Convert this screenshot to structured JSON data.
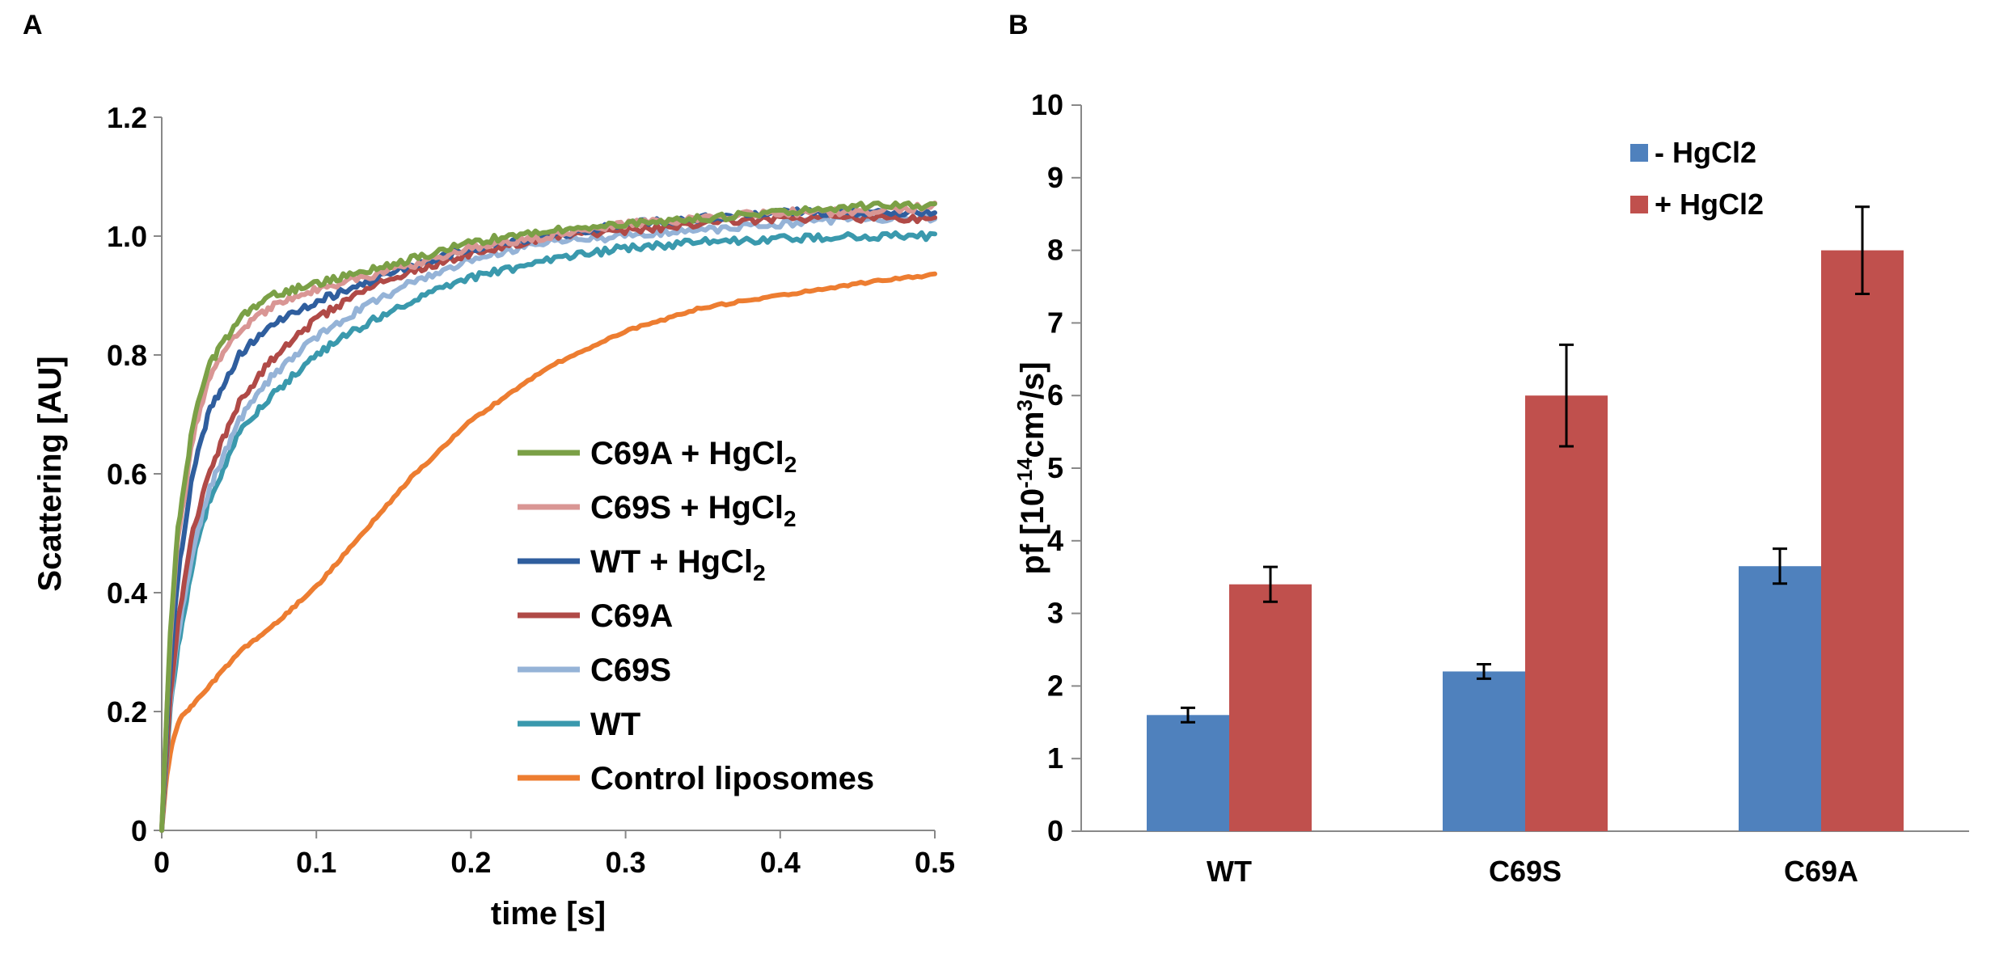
{
  "chart_data": [
    {
      "panel": "A",
      "type": "line",
      "xlabel": "time [s]",
      "ylabel": "Scattering [AU]",
      "xlim": [
        0,
        0.5
      ],
      "ylim": [
        0,
        1.2
      ],
      "x_ticks": [
        "0",
        "0.1",
        "0.2",
        "0.3",
        "0.4",
        "0.5"
      ],
      "y_ticks": [
        "0",
        "0.2",
        "0.4",
        "0.6",
        "0.8",
        "1.0",
        "1.2"
      ],
      "legend_position": "lower-right",
      "series": [
        {
          "name": "Control liposomes",
          "legend_label": {
            "base": "Control liposomes",
            "sub": ""
          },
          "color": "#ed7d31",
          "x": [
            0,
            0.003,
            0.007,
            0.012,
            0.02,
            0.03,
            0.05,
            0.07,
            0.1,
            0.13,
            0.16,
            0.2,
            0.25,
            0.3,
            0.35,
            0.4,
            0.45,
            0.5
          ],
          "y": [
            0,
            0.09,
            0.15,
            0.19,
            0.21,
            0.24,
            0.3,
            0.34,
            0.41,
            0.5,
            0.59,
            0.69,
            0.78,
            0.84,
            0.88,
            0.9,
            0.92,
            0.935
          ]
        },
        {
          "name": "WT",
          "legend_label": {
            "base": "WT",
            "sub": ""
          },
          "color": "#3a99ad",
          "x": [
            0,
            0.005,
            0.01,
            0.02,
            0.03,
            0.05,
            0.07,
            0.1,
            0.13,
            0.16,
            0.2,
            0.25,
            0.3,
            0.35,
            0.4,
            0.45,
            0.5
          ],
          "y": [
            0,
            0.19,
            0.3,
            0.45,
            0.55,
            0.67,
            0.73,
            0.8,
            0.85,
            0.89,
            0.93,
            0.96,
            0.98,
            0.99,
            0.995,
            1.0,
            1.0
          ]
        },
        {
          "name": "C69S",
          "legend_label": {
            "base": "C69S",
            "sub": ""
          },
          "color": "#95b3d7",
          "x": [
            0,
            0.005,
            0.01,
            0.02,
            0.03,
            0.05,
            0.07,
            0.1,
            0.13,
            0.16,
            0.2,
            0.25,
            0.3,
            0.35,
            0.4,
            0.45,
            0.5
          ],
          "y": [
            0,
            0.2,
            0.32,
            0.47,
            0.57,
            0.69,
            0.76,
            0.83,
            0.88,
            0.92,
            0.96,
            0.99,
            1.0,
            1.01,
            1.02,
            1.03,
            1.03
          ]
        },
        {
          "name": "C69A",
          "legend_label": {
            "base": "C69A",
            "sub": ""
          },
          "color": "#b04a47",
          "x": [
            0,
            0.005,
            0.01,
            0.02,
            0.03,
            0.05,
            0.07,
            0.1,
            0.13,
            0.16,
            0.2,
            0.25,
            0.3,
            0.35,
            0.4,
            0.45,
            0.5
          ],
          "y": [
            0,
            0.21,
            0.34,
            0.5,
            0.6,
            0.72,
            0.79,
            0.86,
            0.91,
            0.94,
            0.97,
            1.0,
            1.01,
            1.02,
            1.03,
            1.03,
            1.03
          ]
        },
        {
          "name": "WT + HgCl2",
          "legend_label": {
            "base": "WT + HgCl",
            "sub": "2"
          },
          "color": "#2f5e9e",
          "x": [
            0,
            0.005,
            0.01,
            0.02,
            0.03,
            0.05,
            0.07,
            0.1,
            0.13,
            0.16,
            0.2,
            0.25,
            0.3,
            0.35,
            0.4,
            0.45,
            0.5
          ],
          "y": [
            0,
            0.26,
            0.42,
            0.6,
            0.7,
            0.8,
            0.85,
            0.89,
            0.92,
            0.95,
            0.98,
            1.0,
            1.02,
            1.03,
            1.04,
            1.04,
            1.04
          ]
        },
        {
          "name": "C69S + HgCl2",
          "legend_label": {
            "base": "C69S + HgCl",
            "sub": "2"
          },
          "color": "#d99694",
          "x": [
            0,
            0.005,
            0.01,
            0.02,
            0.03,
            0.05,
            0.07,
            0.1,
            0.13,
            0.16,
            0.2,
            0.25,
            0.3,
            0.35,
            0.4,
            0.45,
            0.5
          ],
          "y": [
            0,
            0.3,
            0.48,
            0.66,
            0.76,
            0.84,
            0.88,
            0.91,
            0.93,
            0.95,
            0.98,
            1.0,
            1.02,
            1.03,
            1.04,
            1.04,
            1.05
          ]
        },
        {
          "name": "C69A + HgCl2",
          "legend_label": {
            "base": "C69A + HgCl",
            "sub": "2"
          },
          "color": "#7ba046",
          "x": [
            0,
            0.005,
            0.01,
            0.02,
            0.03,
            0.05,
            0.07,
            0.1,
            0.13,
            0.16,
            0.2,
            0.25,
            0.3,
            0.35,
            0.4,
            0.45,
            0.5
          ],
          "y": [
            0,
            0.31,
            0.5,
            0.68,
            0.78,
            0.86,
            0.9,
            0.92,
            0.94,
            0.96,
            0.99,
            1.01,
            1.02,
            1.03,
            1.04,
            1.05,
            1.05
          ]
        }
      ]
    },
    {
      "panel": "B",
      "type": "bar",
      "ylabel": {
        "base": "pf [10",
        "sup1": "-14",
        "mid": "cm",
        "sup2": "3",
        "tail": "/s]"
      },
      "ylim": [
        0,
        10
      ],
      "y_ticks": [
        "0",
        "1",
        "2",
        "3",
        "4",
        "5",
        "6",
        "7",
        "8",
        "9",
        "10"
      ],
      "categories": [
        "WT",
        "C69S",
        "C69A"
      ],
      "legend_position": "top",
      "series": [
        {
          "name": "- HgCl2",
          "color": "#4f81bd",
          "values": [
            1.6,
            2.2,
            3.65
          ],
          "errors": [
            0.1,
            0.1,
            0.24
          ]
        },
        {
          "name": "+ HgCl2",
          "color": "#c0504d",
          "values": [
            3.4,
            6.0,
            8.0
          ],
          "errors": [
            0.24,
            0.7,
            0.6
          ]
        }
      ]
    }
  ],
  "panels": {
    "a_label": "A",
    "b_label": "B"
  }
}
